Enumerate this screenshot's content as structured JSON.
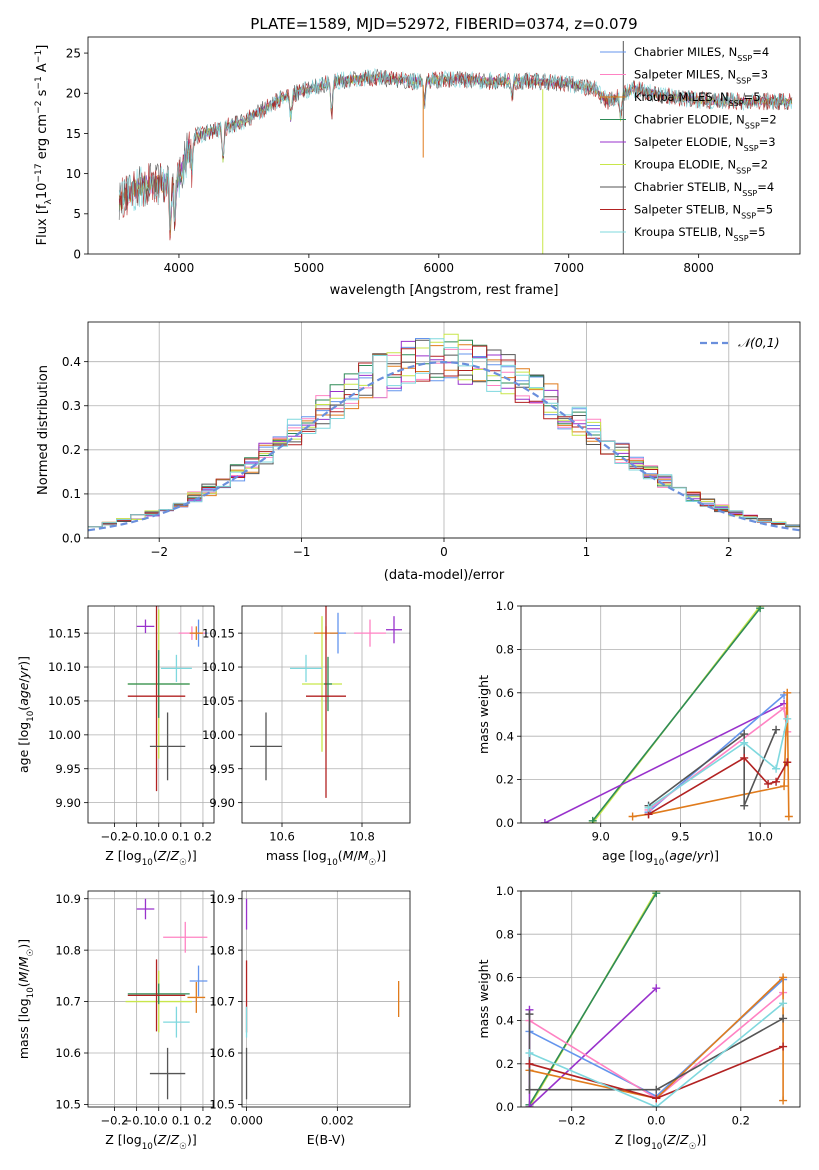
{
  "chart_data": [
    {
      "type": "line",
      "title": "PLATE=1589, MJD=52972, FIBERID=0374, z=0.079",
      "xlabel": "wavelength [Angstrom, rest frame]",
      "ylabel": "Flux [f_λ 10^-17 erg cm^-2 s^-1 A^-1]",
      "xlim": [
        3300,
        8780
      ],
      "ylim": [
        0,
        27
      ],
      "xticks": [
        4000,
        5000,
        6000,
        7000,
        8000
      ],
      "yticks": [
        0,
        5,
        10,
        15,
        20,
        25
      ],
      "grid": false,
      "legend_position": "right",
      "spectrum_knots": {
        "x": [
          3500,
          3700,
          3900,
          4000,
          4100,
          4300,
          4500,
          4800,
          5000,
          5200,
          5500,
          5800,
          6100,
          6400,
          6700,
          7000,
          7200,
          7300,
          7500,
          7800,
          8100,
          8400,
          8700
        ],
        "y": [
          6,
          8.5,
          8.8,
          9.2,
          14.5,
          15.5,
          16.5,
          19.5,
          20.5,
          21.5,
          22,
          21.5,
          21.8,
          21.5,
          21.5,
          21.2,
          20.5,
          19,
          20.5,
          19.5,
          19,
          19,
          19
        ]
      },
      "series": [
        {
          "name": "Chabrier MILES",
          "nssp": "4",
          "color": "#6495ed"
        },
        {
          "name": "Salpeter MILES",
          "nssp": "3",
          "color": "#ff82c3"
        },
        {
          "name": "Kroupa MILES",
          "nssp": "5",
          "color": "#e07b1c"
        },
        {
          "name": "Chabrier ELODIE",
          "nssp": "2",
          "color": "#2e8b57"
        },
        {
          "name": "Salpeter ELODIE",
          "nssp": "3",
          "color": "#9932cc"
        },
        {
          "name": "Kroupa ELODIE",
          "nssp": "2",
          "color": "#c8e64a"
        },
        {
          "name": "Chabrier STELIB",
          "nssp": "4",
          "color": "#555555"
        },
        {
          "name": "Salpeter STELIB",
          "nssp": "5",
          "color": "#b22222"
        },
        {
          "name": "Kroupa STELIB",
          "nssp": "5",
          "color": "#7fd8de"
        }
      ]
    },
    {
      "type": "histogram",
      "xlabel": "(data-model)/error",
      "ylabel": "Normed distribution",
      "xlim": [
        -2.5,
        2.5
      ],
      "ylim": [
        0,
        0.49
      ],
      "xticks": [
        -2,
        -1,
        0,
        1,
        2
      ],
      "yticks": [
        0.0,
        0.1,
        0.2,
        0.3,
        0.4
      ],
      "grid": true,
      "legend_position": "top-right",
      "reference_curve": {
        "name": "𝒩(0,1)",
        "color": "#6a8fdc"
      },
      "bin_width": 0.1
    },
    {
      "type": "scatter",
      "xlabel": "Z [log10(Z/Z☉)]",
      "ylabel": "age [log10(age/yr)]",
      "xlim": [
        -0.32,
        0.25
      ],
      "ylim": [
        9.87,
        10.19
      ],
      "xticks": [
        -0.2,
        -0.1,
        0.0,
        0.1,
        0.2
      ],
      "yticks": [
        9.9,
        9.95,
        10.0,
        10.05,
        10.1,
        10.15
      ],
      "grid": true,
      "points": [
        {
          "s": "Salpeter ELODIE",
          "x": -0.06,
          "y": 10.16,
          "xerr": 0.04,
          "yerr": 0.01
        },
        {
          "s": "Kroupa ELODIE",
          "x": 0.0,
          "y": 10.075,
          "xerr": 0.14,
          "yerr": 0.11
        },
        {
          "s": "Chabrier ELODIE",
          "x": 0.0,
          "y": 10.075,
          "xerr": 0.14,
          "yerr": 0.05
        },
        {
          "s": "Chabrier MILES",
          "x": 0.18,
          "y": 10.15,
          "xerr": 0.04,
          "yerr": 0.02
        },
        {
          "s": "Salpeter MILES",
          "x": 0.15,
          "y": 10.15,
          "xerr": 0.06,
          "yerr": 0.01
        },
        {
          "s": "Kroupa MILES",
          "x": 0.17,
          "y": 10.15,
          "xerr": 0.03,
          "yerr": 0.01
        },
        {
          "s": "Kroupa STELIB",
          "x": 0.08,
          "y": 10.098,
          "xerr": 0.07,
          "yerr": 0.02
        },
        {
          "s": "Salpeter STELIB",
          "x": -0.01,
          "y": 10.057,
          "xerr": 0.13,
          "yerr": 0.14
        },
        {
          "s": "Chabrier STELIB",
          "x": 0.04,
          "y": 9.983,
          "xerr": 0.08,
          "yerr": 0.05
        }
      ]
    },
    {
      "type": "scatter",
      "xlabel": "mass [log10(M/M☉)]",
      "xlim": [
        10.5,
        10.92
      ],
      "ylim": [
        9.87,
        10.19
      ],
      "xticks": [
        10.6,
        10.8
      ],
      "yticks": [
        9.9,
        9.95,
        10.0,
        10.05,
        10.1,
        10.15
      ],
      "grid": true,
      "points": [
        {
          "s": "Salpeter ELODIE",
          "x": 10.88,
          "y": 10.155,
          "xerr": 0.02,
          "yerr": 0.02
        },
        {
          "s": "Kroupa ELODIE",
          "x": 10.7,
          "y": 10.075,
          "xerr": 0.05,
          "yerr": 0.1
        },
        {
          "s": "Chabrier ELODIE",
          "x": 10.715,
          "y": 10.075,
          "xerr": 0.01,
          "yerr": 0.04
        },
        {
          "s": "Chabrier MILES",
          "x": 10.74,
          "y": 10.15,
          "xerr": 0.02,
          "yerr": 0.03
        },
        {
          "s": "Salpeter MILES",
          "x": 10.82,
          "y": 10.15,
          "xerr": 0.04,
          "yerr": 0.02
        },
        {
          "s": "Kroupa MILES",
          "x": 10.71,
          "y": 10.15,
          "xerr": 0.03,
          "yerr": 0.01
        },
        {
          "s": "Kroupa STELIB",
          "x": 10.66,
          "y": 10.098,
          "xerr": 0.04,
          "yerr": 0.02
        },
        {
          "s": "Salpeter STELIB",
          "x": 10.71,
          "y": 10.057,
          "xerr": 0.05,
          "yerr": 0.15
        },
        {
          "s": "Chabrier STELIB",
          "x": 10.56,
          "y": 9.983,
          "xerr": 0.04,
          "yerr": 0.05
        }
      ]
    },
    {
      "type": "line",
      "xlabel": "age [log10(age/yr)]",
      "ylabel": "mass weight",
      "xlim": [
        8.5,
        10.25
      ],
      "ylim": [
        0,
        1.0
      ],
      "xticks": [
        9.0,
        9.5,
        10.0
      ],
      "yticks": [
        0.0,
        0.2,
        0.4,
        0.6,
        0.8,
        1.0
      ],
      "grid": true,
      "lines": [
        {
          "s": "Kroupa ELODIE",
          "x": [
            8.95,
            10.0
          ],
          "y": [
            0.0,
            1.0
          ]
        },
        {
          "s": "Chabrier ELODIE",
          "x": [
            8.95,
            10.0
          ],
          "y": [
            0.01,
            0.99
          ]
        },
        {
          "s": "Salpeter ELODIE",
          "x": [
            8.65,
            10.15
          ],
          "y": [
            0.0,
            0.55
          ]
        },
        {
          "s": "Chabrier MILES",
          "x": [
            9.3,
            10.15
          ],
          "y": [
            0.05,
            0.59
          ]
        },
        {
          "s": "Salpeter MILES",
          "x": [
            9.3,
            10.15,
            10.17
          ],
          "y": [
            0.06,
            0.53,
            0.42
          ]
        },
        {
          "s": "Kroupa MILES",
          "x": [
            9.2,
            9.3,
            10.15,
            10.17,
            10.18
          ],
          "y": [
            0.03,
            0.04,
            0.17,
            0.6,
            0.03
          ]
        },
        {
          "s": "Chabrier STELIB",
          "x": [
            9.3,
            9.9,
            9.9,
            10.1
          ],
          "y": [
            0.08,
            0.41,
            0.08,
            0.43
          ]
        },
        {
          "s": "Salpeter STELIB",
          "x": [
            9.3,
            9.9,
            10.05,
            10.1,
            10.17
          ],
          "y": [
            0.04,
            0.3,
            0.18,
            0.19,
            0.28
          ]
        },
        {
          "s": "Kroupa STELIB",
          "x": [
            9.3,
            9.9,
            10.1,
            10.17
          ],
          "y": [
            0.07,
            0.37,
            0.25,
            0.48
          ]
        }
      ]
    },
    {
      "type": "scatter",
      "xlabel": "Z [log10(Z/Z☉)]",
      "ylabel": "mass [log10(M/M☉)]",
      "xlim": [
        -0.32,
        0.25
      ],
      "ylim": [
        10.495,
        10.915
      ],
      "xticks": [
        -0.2,
        -0.1,
        0.0,
        0.1,
        0.2
      ],
      "yticks": [
        10.5,
        10.6,
        10.7,
        10.8,
        10.9
      ],
      "grid": true,
      "points": [
        {
          "s": "Salpeter ELODIE",
          "x": -0.06,
          "y": 10.88,
          "xerr": 0.04,
          "yerr": 0.02
        },
        {
          "s": "Kroupa ELODIE",
          "x": 0.0,
          "y": 10.7,
          "xerr": 0.15,
          "yerr": 0.06
        },
        {
          "s": "Chabrier ELODIE",
          "x": 0.0,
          "y": 10.715,
          "xerr": 0.14,
          "yerr": 0.02
        },
        {
          "s": "Chabrier MILES",
          "x": 0.18,
          "y": 10.74,
          "xerr": 0.04,
          "yerr": 0.03
        },
        {
          "s": "Salpeter MILES",
          "x": 0.12,
          "y": 10.825,
          "xerr": 0.1,
          "yerr": 0.03
        },
        {
          "s": "Kroupa MILES",
          "x": 0.17,
          "y": 10.708,
          "xerr": 0.04,
          "yerr": 0.03
        },
        {
          "s": "Kroupa STELIB",
          "x": 0.08,
          "y": 10.66,
          "xerr": 0.06,
          "yerr": 0.03
        },
        {
          "s": "Salpeter STELIB",
          "x": -0.01,
          "y": 10.712,
          "xerr": 0.13,
          "yerr": 0.07
        },
        {
          "s": "Chabrier STELIB",
          "x": 0.04,
          "y": 10.56,
          "xerr": 0.08,
          "yerr": 0.05
        }
      ]
    },
    {
      "type": "scatter",
      "xlabel": "E(B-V)",
      "xlim": [
        -0.0001,
        0.0036
      ],
      "ylim": [
        10.495,
        10.915
      ],
      "xticks": [
        0.0,
        0.002
      ],
      "xticklabels": [
        "0.000",
        "0.002"
      ],
      "yticks": [
        10.5,
        10.6,
        10.7,
        10.8,
        10.9
      ],
      "grid": true,
      "points": [
        {
          "s": "Salpeter ELODIE",
          "x": 0.0,
          "y": 10.87,
          "xerr": 0,
          "yerr": 0.03
        },
        {
          "s": "Kroupa MILES",
          "x": 0.00335,
          "y": 10.705,
          "xerr": 0,
          "yerr": 0.035
        },
        {
          "s": "Salpeter STELIB",
          "x": 0.0,
          "y": 10.71,
          "xerr": 0,
          "yerr": 0.07
        },
        {
          "s": "Kroupa STELIB",
          "x": 0.0,
          "y": 10.66,
          "xerr": 0,
          "yerr": 0.03
        },
        {
          "s": "Chabrier STELIB",
          "x": 0.0,
          "y": 10.56,
          "xerr": 0,
          "yerr": 0.05
        }
      ]
    },
    {
      "type": "line",
      "xlabel": "Z [log10(Z/Z☉)]",
      "ylabel": "mass weight",
      "xlim": [
        -0.32,
        0.34
      ],
      "ylim": [
        0,
        1.0
      ],
      "xticks": [
        -0.2,
        0.0,
        0.2
      ],
      "yticks": [
        0.0,
        0.2,
        0.4,
        0.6,
        0.8,
        1.0
      ],
      "grid": true,
      "lines": [
        {
          "s": "Kroupa ELODIE",
          "x": [
            -0.3,
            0.0
          ],
          "y": [
            0.0,
            1.0
          ]
        },
        {
          "s": "Chabrier ELODIE",
          "x": [
            -0.3,
            0.0
          ],
          "y": [
            0.01,
            0.99
          ]
        },
        {
          "s": "Salpeter ELODIE",
          "x": [
            -0.3,
            -0.3,
            0.0
          ],
          "y": [
            0.45,
            0.0,
            0.55
          ]
        },
        {
          "s": "Chabrier MILES",
          "x": [
            -0.3,
            0.0,
            0.3
          ],
          "y": [
            0.35,
            0.05,
            0.59
          ]
        },
        {
          "s": "Salpeter MILES",
          "x": [
            -0.3,
            0.0,
            0.3
          ],
          "y": [
            0.4,
            0.04,
            0.53
          ]
        },
        {
          "s": "Kroupa MILES",
          "x": [
            -0.3,
            0.0,
            0.3,
            0.3
          ],
          "y": [
            0.17,
            0.04,
            0.6,
            0.03
          ]
        },
        {
          "s": "Chabrier STELIB",
          "x": [
            -0.3,
            -0.3,
            0.0,
            0.3
          ],
          "y": [
            0.43,
            0.08,
            0.08,
            0.41
          ]
        },
        {
          "s": "Salpeter STELIB",
          "x": [
            -0.3,
            0.0,
            0.3
          ],
          "y": [
            0.2,
            0.04,
            0.28
          ]
        },
        {
          "s": "Kroupa STELIB",
          "x": [
            -0.3,
            0.0,
            0.3
          ],
          "y": [
            0.25,
            0.0,
            0.48
          ]
        }
      ]
    }
  ]
}
